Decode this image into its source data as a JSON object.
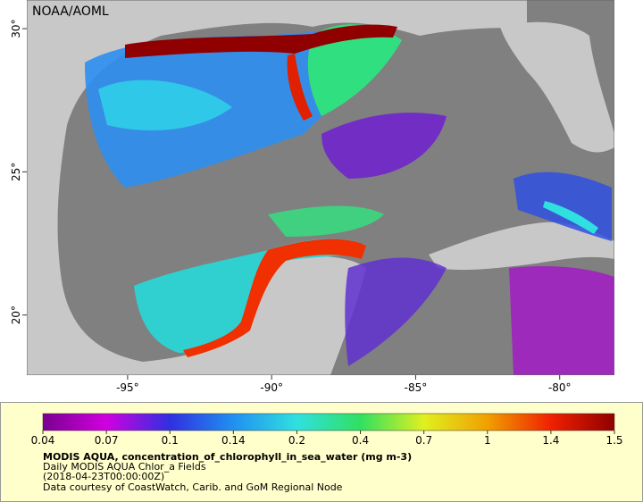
{
  "map": {
    "credit": "NOAA/AOML",
    "xlim": [
      -98.5,
      -78.1
    ],
    "ylim": [
      17.9,
      31
    ],
    "lon_ticks": [
      {
        "value": -95,
        "label": "-95°"
      },
      {
        "value": -90,
        "label": "-90°"
      },
      {
        "value": -85,
        "label": "-85°"
      },
      {
        "value": -80,
        "label": "-80°"
      }
    ],
    "lat_ticks": [
      {
        "value": 30,
        "label": "30°"
      },
      {
        "value": 25,
        "label": "25°"
      },
      {
        "value": 20,
        "label": "20°"
      }
    ]
  },
  "colorbar": {
    "ticks": [
      0.04,
      0.07,
      0.1,
      0.14,
      0.2,
      0.4,
      0.7,
      1,
      1.4,
      1.5
    ],
    "colors": [
      "#7a0090",
      "#d000e0",
      "#3030e0",
      "#2090f0",
      "#30e0e0",
      "#30e060",
      "#e0f020",
      "#f0a000",
      "#f02000",
      "#900000"
    ]
  },
  "caption": {
    "title": "MODIS AQUA, concentration_of_chlorophyll_in_sea_water (mg m-3)",
    "lines": [
      "Daily MODIS AQUA Chlor_a Fields",
      "(2018-04-23T00:00:00Z)",
      "Data courtesy of CoastWatch, Carib. and GoM Regional Node"
    ]
  }
}
